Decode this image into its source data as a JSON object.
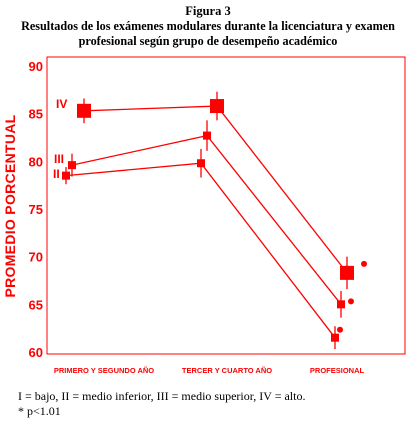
{
  "figure": {
    "number": "Figura 3",
    "caption": "Resultados de los exámenes modulares durante la licenciatura y examen profesional según grupo de desempeño académico"
  },
  "notes": {
    "legend": "I = bajo, II = medio inferior, III = medio superior, IV = alto.",
    "significance": "* p<1.01"
  },
  "chart_data": {
    "type": "line",
    "ylabel": "PROMEDIO PORCENTUAL",
    "xlabel": "",
    "categories": [
      "PRIMERO Y SEGUNDO AÑO",
      "TERCER Y CUARTO  AÑO",
      "PROFESIONAL"
    ],
    "ylim": [
      60,
      90
    ],
    "yticks": [
      "90",
      "85",
      "80",
      "75",
      "70",
      "65",
      "60"
    ],
    "grid": false,
    "series": [
      {
        "name": "IV",
        "values": [
          85.3,
          85.8,
          68.3
        ],
        "error": [
          1.3,
          1.5,
          1.7
        ]
      },
      {
        "name": "III",
        "values": [
          79.6,
          82.7,
          65.0
        ],
        "error": [
          1.2,
          1.6,
          1.4
        ]
      },
      {
        "name": "II",
        "values": [
          78.5,
          79.8,
          61.5
        ],
        "error": [
          0.9,
          1.5,
          1.2
        ]
      }
    ],
    "significance_marker": "•",
    "significance_on": "PROFESIONAL",
    "color": "#ff0000"
  }
}
